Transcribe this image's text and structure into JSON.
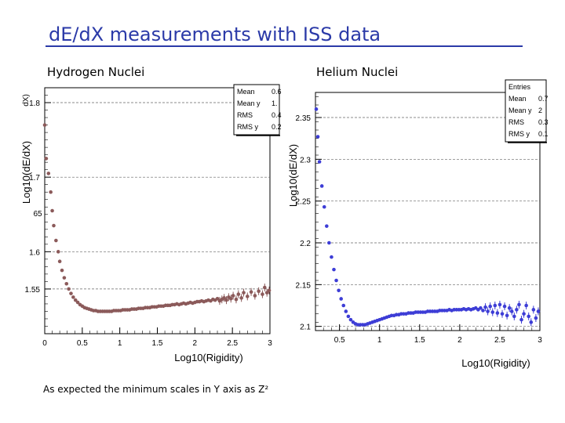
{
  "slide": {
    "title": "dE/dX measurements with ISS data",
    "footnote": "As expected the minimum scales in Y axis as Z²"
  },
  "chart_data": [
    {
      "type": "scatter",
      "subtitle": "Hydrogen Nuclei",
      "xlabel": "Log10(Rigidity)",
      "ylabel": "Log10(dE/dX)",
      "ylabel_fragment_top": "dX)",
      "ylabel_fragment_mid": "65",
      "xlim": [
        0,
        3
      ],
      "ylim": [
        1.49,
        1.82
      ],
      "xticks": [
        0,
        0.5,
        1,
        1.5,
        2,
        2.5,
        3
      ],
      "xtick_labels": [
        "0",
        "0.5",
        "1",
        "1.5",
        "2",
        "2.5",
        "3"
      ],
      "yticks": [
        1.55,
        1.6,
        1.7,
        1.8
      ],
      "ytick_labels": [
        "1.55",
        "1.6",
        "1.7",
        "1.8"
      ],
      "grid": "horizontal dashed",
      "marker_color": "#8b5a5a",
      "stats_box": {
        "position": "top-right",
        "rows": [
          {
            "label": "Mean",
            "value": "0.6"
          },
          {
            "label": "Mean y",
            "value": "1."
          },
          {
            "label": "RMS",
            "value": "0.4"
          },
          {
            "label": "RMS y",
            "value": "0.2"
          }
        ]
      },
      "x": [
        0.02,
        0.05,
        0.08,
        0.1,
        0.12,
        0.15,
        0.18,
        0.2,
        0.23,
        0.26,
        0.29,
        0.32,
        0.35,
        0.38,
        0.41,
        0.44,
        0.47,
        0.5,
        0.53,
        0.56,
        0.59,
        0.62,
        0.65,
        0.68,
        0.71,
        0.74,
        0.77,
        0.8,
        0.83,
        0.86,
        0.89,
        0.92,
        0.95,
        0.98,
        1.01,
        1.04,
        1.07,
        1.1,
        1.13,
        1.16,
        1.19,
        1.22,
        1.25,
        1.28,
        1.31,
        1.34,
        1.37,
        1.4,
        1.43,
        1.46,
        1.49,
        1.52,
        1.55,
        1.58,
        1.61,
        1.64,
        1.67,
        1.7,
        1.73,
        1.76,
        1.79,
        1.82,
        1.85,
        1.88,
        1.91,
        1.94,
        1.97,
        2.0,
        2.03,
        2.06,
        2.09,
        2.12,
        2.15,
        2.18,
        2.21,
        2.24,
        2.27,
        2.3,
        2.33,
        2.36,
        2.39,
        2.42,
        2.45,
        2.48,
        2.51,
        2.55,
        2.58,
        2.62,
        2.65,
        2.7,
        2.75,
        2.8,
        2.85,
        2.9,
        2.93,
        2.96,
        2.99
      ],
      "y": [
        1.725,
        1.705,
        1.68,
        1.655,
        1.635,
        1.615,
        1.6,
        1.587,
        1.575,
        1.565,
        1.557,
        1.55,
        1.544,
        1.539,
        1.535,
        1.532,
        1.529,
        1.527,
        1.525,
        1.524,
        1.523,
        1.522,
        1.521,
        1.521,
        1.52,
        1.52,
        1.52,
        1.52,
        1.52,
        1.52,
        1.52,
        1.521,
        1.521,
        1.521,
        1.521,
        1.522,
        1.522,
        1.522,
        1.522,
        1.523,
        1.523,
        1.523,
        1.524,
        1.524,
        1.524,
        1.525,
        1.525,
        1.525,
        1.526,
        1.526,
        1.526,
        1.527,
        1.527,
        1.527,
        1.528,
        1.528,
        1.528,
        1.529,
        1.529,
        1.53,
        1.529,
        1.53,
        1.531,
        1.53,
        1.531,
        1.532,
        1.531,
        1.532,
        1.533,
        1.533,
        1.534,
        1.533,
        1.534,
        1.535,
        1.534,
        1.536,
        1.535,
        1.537,
        1.534,
        1.536,
        1.538,
        1.535,
        1.539,
        1.537,
        1.541,
        1.536,
        1.543,
        1.538,
        1.545,
        1.54,
        1.546,
        1.541,
        1.547,
        1.543,
        1.552,
        1.545,
        1.548
      ],
      "extra_points": [
        {
          "x": 0.0,
          "y": 1.77
        }
      ]
    },
    {
      "type": "scatter",
      "subtitle": "Helium Nuclei",
      "xlabel": "Log10(Rigidity)",
      "ylabel": "Log10(dE/dX)",
      "xlim": [
        0.2,
        3
      ],
      "ylim": [
        2.095,
        2.38
      ],
      "xticks": [
        0.5,
        1,
        1.5,
        2,
        2.5,
        3
      ],
      "xtick_labels": [
        "0.5",
        "1",
        "1.5",
        "2",
        "2.5",
        "3"
      ],
      "yticks": [
        2.1,
        2.15,
        2.2,
        2.25,
        2.3,
        2.35
      ],
      "ytick_labels": [
        "2.1",
        "2.15",
        "2.2",
        "2.25",
        "2.3",
        "2.35"
      ],
      "grid": "horizontal dashed",
      "marker_color": "#3d3dd6",
      "stats_box": {
        "position": "top-right",
        "rows": [
          {
            "label": "Entries",
            "value": ""
          },
          {
            "label": "Mean",
            "value": "0.7"
          },
          {
            "label": "Mean y",
            "value": "2"
          },
          {
            "label": "RMS",
            "value": "0.3"
          },
          {
            "label": "RMS y",
            "value": "0.1"
          }
        ]
      },
      "x": [
        0.21,
        0.23,
        0.25,
        0.28,
        0.31,
        0.34,
        0.37,
        0.4,
        0.43,
        0.46,
        0.49,
        0.52,
        0.55,
        0.58,
        0.61,
        0.64,
        0.67,
        0.7,
        0.73,
        0.76,
        0.79,
        0.82,
        0.85,
        0.88,
        0.91,
        0.94,
        0.97,
        1.0,
        1.03,
        1.06,
        1.09,
        1.12,
        1.15,
        1.18,
        1.21,
        1.24,
        1.27,
        1.3,
        1.33,
        1.36,
        1.39,
        1.42,
        1.45,
        1.48,
        1.51,
        1.54,
        1.57,
        1.6,
        1.63,
        1.66,
        1.69,
        1.72,
        1.75,
        1.78,
        1.81,
        1.84,
        1.87,
        1.9,
        1.93,
        1.96,
        1.99,
        2.02,
        2.05,
        2.08,
        2.11,
        2.14,
        2.17,
        2.2,
        2.23,
        2.26,
        2.29,
        2.32,
        2.35,
        2.38,
        2.41,
        2.44,
        2.47,
        2.5,
        2.53,
        2.56,
        2.59,
        2.62,
        2.65,
        2.68,
        2.71,
        2.74,
        2.77,
        2.8,
        2.83,
        2.86,
        2.89,
        2.92,
        2.95,
        2.98
      ],
      "y": [
        2.36,
        2.327,
        2.297,
        2.268,
        2.243,
        2.22,
        2.2,
        2.183,
        2.168,
        2.155,
        2.143,
        2.133,
        2.125,
        2.118,
        2.112,
        2.108,
        2.105,
        2.103,
        2.102,
        2.102,
        2.102,
        2.102,
        2.103,
        2.104,
        2.105,
        2.106,
        2.107,
        2.108,
        2.109,
        2.11,
        2.111,
        2.112,
        2.113,
        2.113,
        2.114,
        2.114,
        2.115,
        2.115,
        2.115,
        2.116,
        2.116,
        2.116,
        2.117,
        2.117,
        2.117,
        2.117,
        2.117,
        2.118,
        2.118,
        2.118,
        2.118,
        2.118,
        2.119,
        2.119,
        2.119,
        2.119,
        2.12,
        2.119,
        2.12,
        2.12,
        2.12,
        2.12,
        2.121,
        2.12,
        2.121,
        2.12,
        2.121,
        2.122,
        2.12,
        2.122,
        2.119,
        2.123,
        2.118,
        2.124,
        2.117,
        2.125,
        2.116,
        2.126,
        2.115,
        2.124,
        2.113,
        2.122,
        2.118,
        2.112,
        2.12,
        2.126,
        2.108,
        2.115,
        2.125,
        2.112,
        2.105,
        2.12,
        2.11,
        2.118
      ]
    }
  ]
}
